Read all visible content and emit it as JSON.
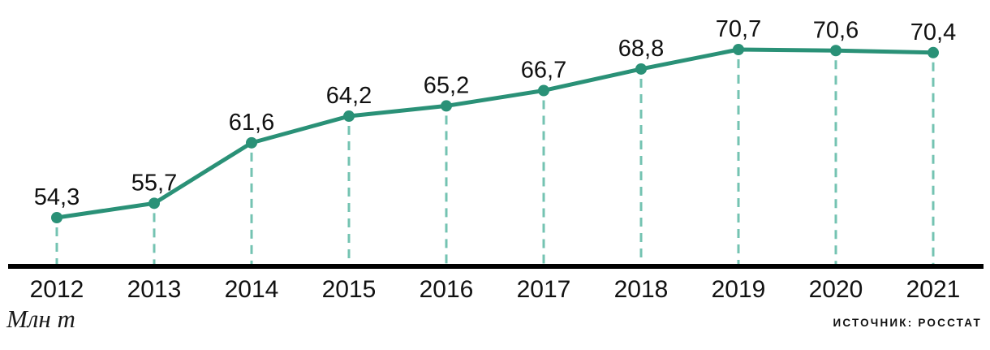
{
  "chart_data": {
    "type": "line",
    "categories": [
      "2012",
      "2013",
      "2014",
      "2015",
      "2016",
      "2017",
      "2018",
      "2019",
      "2020",
      "2021"
    ],
    "values": [
      54.3,
      55.7,
      61.6,
      64.2,
      65.2,
      66.7,
      68.8,
      70.7,
      70.6,
      70.4
    ],
    "value_labels": [
      "54,3",
      "55,7",
      "61,6",
      "64,2",
      "65,2",
      "66,7",
      "68,8",
      "70,7",
      "70,6",
      "70,4"
    ],
    "title": "",
    "xlabel": "",
    "ylabel": "Млн т",
    "ylim": [
      54.3,
      70.7
    ],
    "legend_position": "none",
    "grid": "vertical dashed droplines from points to baseline",
    "line_color": "#2a9177",
    "marker_color": "#2a9177",
    "dropline_color": "#74c3b2",
    "axis_color": "#000000",
    "text_color": "#111111"
  },
  "footer": {
    "unit_label": "Млн т",
    "source": "ИСТОЧНИК: РОССТАТ"
  }
}
